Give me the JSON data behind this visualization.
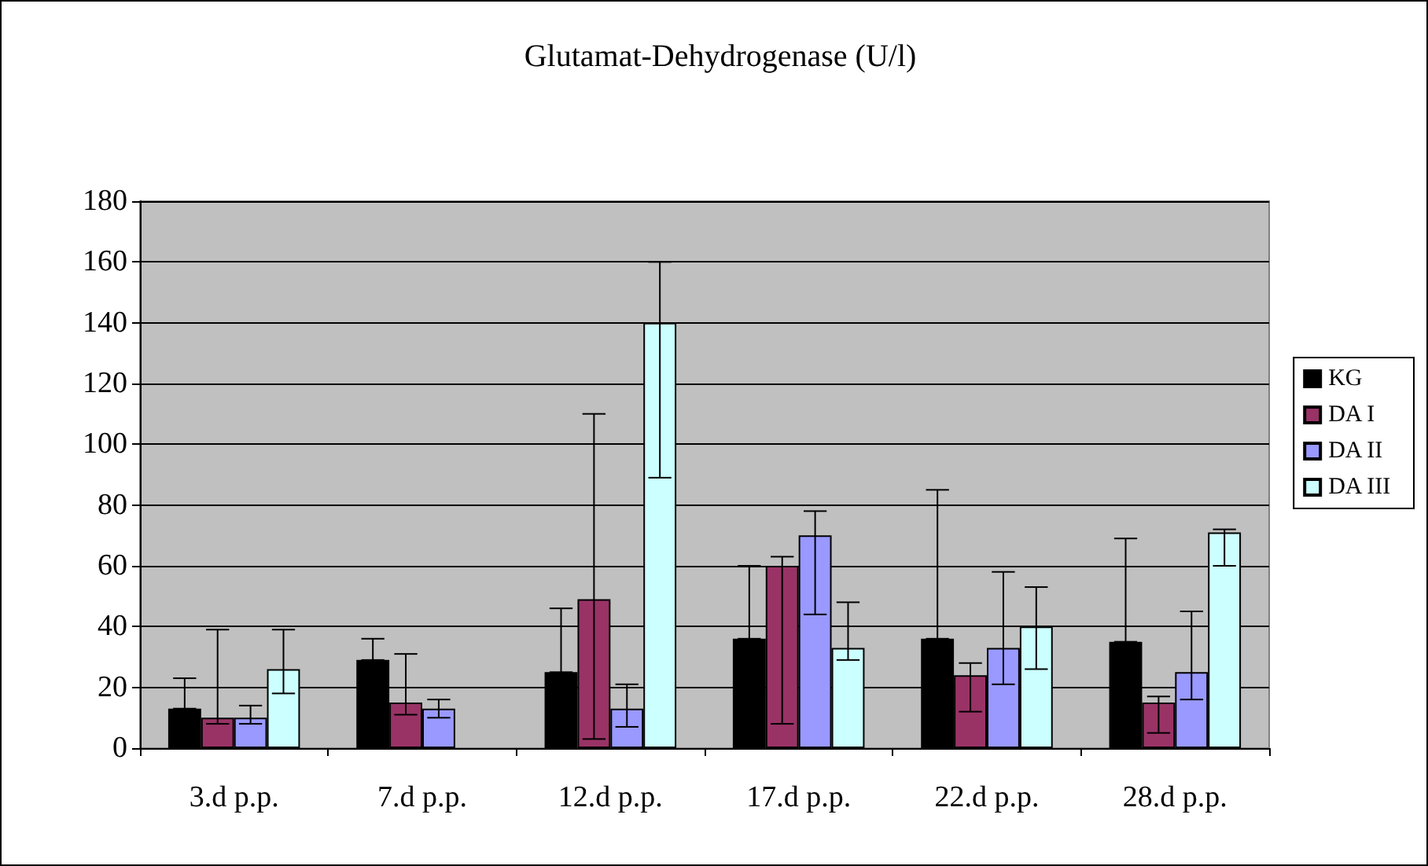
{
  "chart_data": {
    "type": "bar",
    "title": "Glutamat-Dehydrogenase (U/l)",
    "categories": [
      "3.d p.p.",
      "7.d p.p.",
      "12.d p.p.",
      "17.d p.p.",
      "22.d p.p.",
      "28.d p.p."
    ],
    "series": [
      {
        "name": "KG",
        "color": "#000000",
        "values": [
          13,
          29,
          25,
          36,
          36,
          35
        ],
        "errors": [
          [
            13,
            23
          ],
          [
            29,
            36
          ],
          [
            25,
            46
          ],
          [
            36,
            60
          ],
          [
            36,
            85
          ],
          [
            35,
            69
          ]
        ]
      },
      {
        "name": "DA I",
        "color": "#993366",
        "values": [
          10,
          15,
          49,
          60,
          24,
          15
        ],
        "errors": [
          [
            8,
            39
          ],
          [
            11,
            31
          ],
          [
            3,
            110
          ],
          [
            8,
            63
          ],
          [
            12,
            28
          ],
          [
            5,
            17
          ]
        ]
      },
      {
        "name": "DA II",
        "color": "#9999ff",
        "values": [
          10,
          13,
          13,
          70,
          33,
          25
        ],
        "errors": [
          [
            8,
            14
          ],
          [
            10,
            16
          ],
          [
            7,
            21
          ],
          [
            44,
            78
          ],
          [
            21,
            58
          ],
          [
            16,
            45
          ]
        ]
      },
      {
        "name": "DA III",
        "color": "#ccffff",
        "values": [
          26,
          null,
          140,
          33,
          40,
          71
        ],
        "errors": [
          [
            18,
            39
          ],
          null,
          [
            89,
            160
          ],
          [
            29,
            48
          ],
          [
            26,
            53
          ],
          [
            60,
            72
          ]
        ]
      }
    ],
    "ylim": [
      0,
      180
    ],
    "yticks": [
      0,
      20,
      40,
      60,
      80,
      100,
      120,
      140,
      160,
      180
    ],
    "grid": "y",
    "legend": "right"
  }
}
